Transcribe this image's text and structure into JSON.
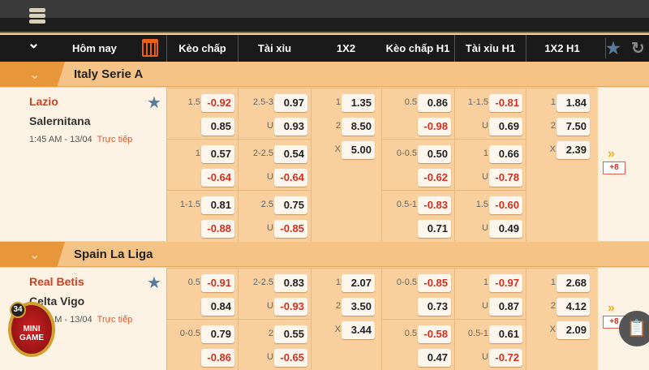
{
  "header": {
    "today": "Hôm nay",
    "cols": [
      "Kèo chấp",
      "Tài xỉu",
      "1X2",
      "Kèo chấp H1",
      "Tài xỉu H1",
      "1X2 H1"
    ]
  },
  "leagues": [
    {
      "name": "Italy Serie A",
      "match": {
        "home": "Lazio",
        "away": "Salernitana",
        "time": "1:45 AM - 13/04",
        "status": "Trực tiếp",
        "more": "+8",
        "rows": [
          {
            "kc": [
              "1.5",
              "-0.92",
              "",
              "0.85"
            ],
            "tx": [
              "2.5-3",
              "0.97",
              "U",
              "0.93"
            ],
            "kch1": [
              "0.5",
              "0.86",
              "",
              "-0.98"
            ],
            "txh1": [
              "1-1.5",
              "-0.81",
              "U",
              "0.69"
            ]
          },
          {
            "kc": [
              "1",
              "0.57",
              "",
              "-0.64"
            ],
            "tx": [
              "2-2.5",
              "0.54",
              "U",
              "-0.64"
            ],
            "kch1": [
              "0-0.5",
              "0.50",
              "",
              "-0.62"
            ],
            "txh1": [
              "1",
              "0.66",
              "U",
              "-0.78"
            ]
          },
          {
            "kc": [
              "1-1.5",
              "0.81",
              "",
              "-0.88"
            ],
            "tx": [
              "2.5",
              "0.75",
              "U",
              "-0.85"
            ],
            "kch1": [
              "0.5-1",
              "-0.83",
              "",
              "0.71"
            ],
            "txh1": [
              "1.5",
              "-0.60",
              "U",
              "0.49"
            ]
          }
        ],
        "x12": [
          [
            "1",
            "1.35"
          ],
          [
            "2",
            "8.50"
          ],
          [
            "X",
            "5.00"
          ]
        ],
        "x12h1": [
          [
            "1",
            "1.84"
          ],
          [
            "2",
            "7.50"
          ],
          [
            "X",
            "2.39"
          ]
        ]
      }
    },
    {
      "name": "Spain La Liga",
      "match": {
        "home": "Real Betis",
        "away": "Celta Vigo",
        "time": "1:45 AM - 13/04",
        "status": "Trực tiếp",
        "more": "+8",
        "rows": [
          {
            "kc": [
              "0.5",
              "-0.91",
              "",
              "0.84"
            ],
            "tx": [
              "2-2.5",
              "0.83",
              "U",
              "-0.93"
            ],
            "kch1": [
              "0-0.5",
              "-0.85",
              "",
              "0.73"
            ],
            "txh1": [
              "1",
              "-0.97",
              "U",
              "0.87"
            ]
          },
          {
            "kc": [
              "0-0.5",
              "0.79",
              "",
              "-0.86"
            ],
            "tx": [
              "2",
              "0.55",
              "U",
              "-0.65"
            ],
            "kch1": [
              "0.5",
              "-0.58",
              "",
              "0.47"
            ],
            "txh1": [
              "0.5-1",
              "0.61",
              "U",
              "-0.72"
            ]
          }
        ],
        "x12": [
          [
            "1",
            "2.07"
          ],
          [
            "2",
            "3.50"
          ],
          [
            "X",
            "3.44"
          ]
        ],
        "x12h1": [
          [
            "1",
            "2.68"
          ],
          [
            "2",
            "4.12"
          ],
          [
            "X",
            "2.09"
          ]
        ]
      }
    }
  ],
  "minigame": {
    "count": "34",
    "label1": "MINI",
    "label2": "GAME"
  },
  "colors": {
    "accent": "#e8963a",
    "negative": "#d03020",
    "home": "#d04020"
  }
}
